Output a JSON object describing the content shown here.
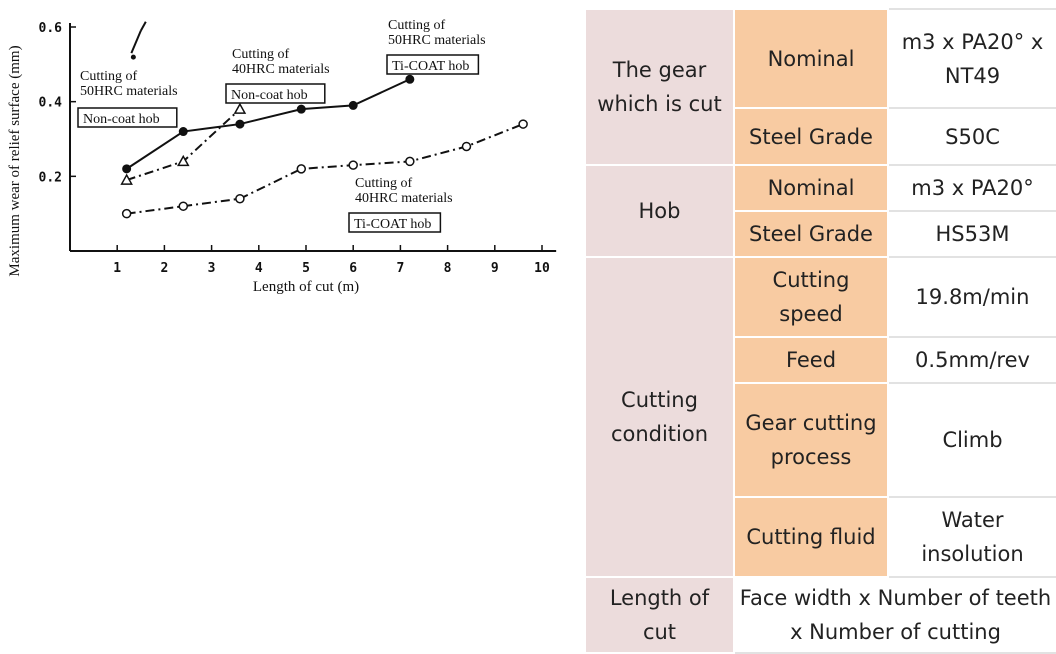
{
  "chart_data": {
    "type": "line",
    "xlabel": "Length of cut (m)",
    "ylabel": "Maximum wear of relief surface (mm)",
    "xlim": [
      0,
      10
    ],
    "ylim": [
      0,
      0.6
    ],
    "x_ticks": [
      "1",
      "2",
      "3",
      "4",
      "5",
      "6",
      "7",
      "8",
      "9",
      "10"
    ],
    "y_ticks": [
      "0.2",
      "0.4",
      "0.6"
    ],
    "grid": false,
    "series": [
      {
        "annotation": [
          "Cutting of",
          "50HRC materials"
        ],
        "box": "Non-coat hob",
        "marker": "none",
        "style": "solid",
        "x": [
          1.3,
          1.5
        ],
        "y": [
          0.53,
          0.59
        ]
      },
      {
        "annotation": [
          "Cutting of",
          "40HRC materials"
        ],
        "box": "Non-coat hob",
        "marker": "open-triangle",
        "style": "dash-dot",
        "x": [
          1.2,
          2.4,
          3.6
        ],
        "y": [
          0.19,
          0.24,
          0.38
        ]
      },
      {
        "annotation": [
          "Cutting of",
          "50HRC materials"
        ],
        "box": "Ti-COAT hob",
        "marker": "filled-circle",
        "style": "solid",
        "x": [
          1.2,
          2.4,
          3.6,
          4.9,
          6.0,
          7.2
        ],
        "y": [
          0.22,
          0.32,
          0.34,
          0.38,
          0.39,
          0.46
        ]
      },
      {
        "annotation": [
          "Cutting of",
          "40HRC materials"
        ],
        "box": "Ti-COAT hob",
        "marker": "open-circle",
        "style": "dash-dot",
        "x": [
          1.2,
          2.4,
          3.6,
          4.9,
          6.0,
          7.2,
          8.4,
          9.6
        ],
        "y": [
          0.1,
          0.12,
          0.14,
          0.22,
          0.23,
          0.24,
          0.28,
          0.34
        ]
      }
    ]
  },
  "table": {
    "gear": {
      "label": "The gear which is cut",
      "nominal_label": "Nominal",
      "nominal_value": "m3 x PA20° x NT49",
      "steel_label": "Steel Grade",
      "steel_value": "S50C"
    },
    "hob": {
      "label": "Hob",
      "nominal_label": "Nominal",
      "nominal_value": "m3 x PA20°",
      "steel_label": "Steel Grade",
      "steel_value": "HS53M"
    },
    "cutting": {
      "label": "Cutting condition",
      "speed_label": "Cutting speed",
      "speed_value": "19.8m/min",
      "feed_label": "Feed",
      "feed_value": "0.5mm/rev",
      "process_label": "Gear cutting process",
      "process_value": "Climb",
      "fluid_label": "Cutting fluid",
      "fluid_value": "Water insolution"
    },
    "length": {
      "label": "Length of cut",
      "value": "Face width x Number of teeth x Number of cutting"
    }
  }
}
